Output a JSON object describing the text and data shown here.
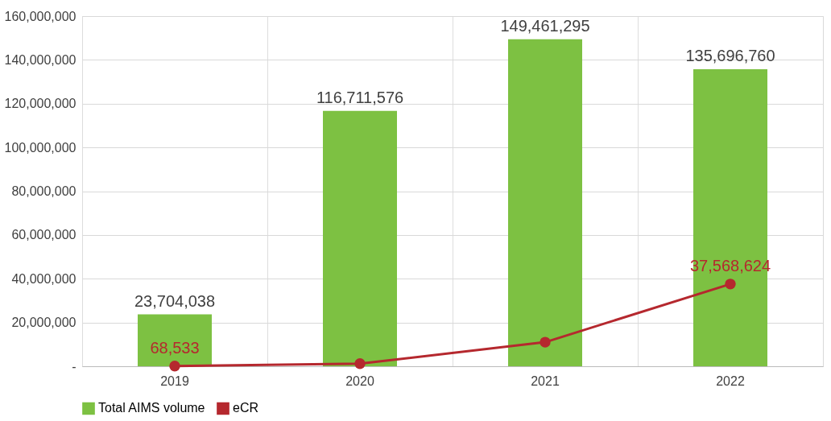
{
  "chart_data": {
    "type": "bar",
    "categories": [
      "2019",
      "2020",
      "2021",
      "2022"
    ],
    "series": [
      {
        "name": "Total AIMS volume",
        "color": "#7dc142",
        "values": [
          23704038,
          116711576,
          149461295,
          135696760
        ],
        "value_labels": [
          "23,704,038",
          "116,711,576",
          "149,461,295",
          "135,696,760"
        ]
      },
      {
        "name": "eCR",
        "type": "line",
        "color": "#b5282e",
        "marker": "circle",
        "values": [
          68533,
          1200000,
          11000000,
          37568624
        ],
        "value_labels": [
          "68,533",
          null,
          null,
          "37,568,624"
        ]
      }
    ],
    "ylim": [
      0,
      160000000
    ],
    "yticks": [
      {
        "value": 0,
        "label": "-"
      },
      {
        "value": 20000000,
        "label": "20,000,000"
      },
      {
        "value": 40000000,
        "label": "40,000,000"
      },
      {
        "value": 60000000,
        "label": "60,000,000"
      },
      {
        "value": 80000000,
        "label": "80,000,000"
      },
      {
        "value": 100000000,
        "label": "100,000,000"
      },
      {
        "value": 120000000,
        "label": "120,000,000"
      },
      {
        "value": 140000000,
        "label": "140,000,000"
      },
      {
        "value": 160000000,
        "label": "160,000,000"
      }
    ],
    "grid": true,
    "legend": "bottom"
  }
}
